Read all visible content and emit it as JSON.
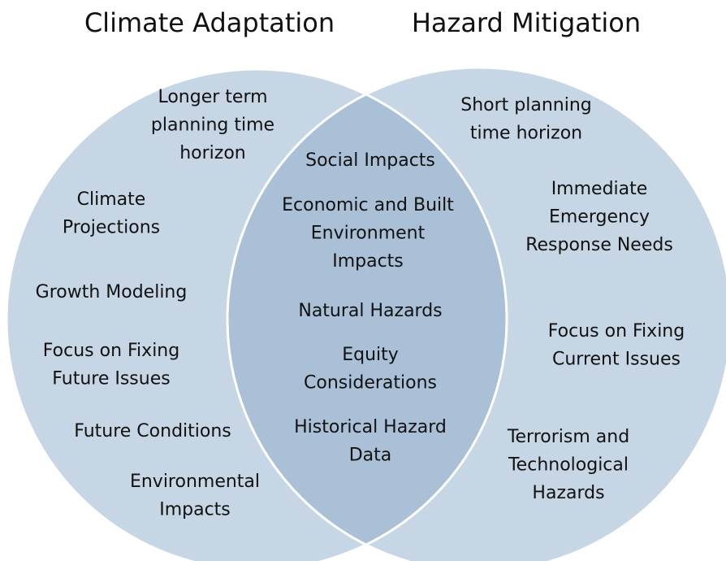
{
  "titles": [
    "Climate Adaptation",
    "Hazard Mitigation"
  ],
  "left_items": [
    {
      "lines": [
        "Longer term",
        "planning time",
        "horizon"
      ]
    },
    {
      "lines": [
        "Climate",
        "Projections"
      ]
    },
    {
      "lines": [
        "Growth Modeling"
      ]
    },
    {
      "lines": [
        "Focus on Fixing",
        "Future Issues"
      ]
    },
    {
      "lines": [
        "Future Conditions"
      ]
    },
    {
      "lines": [
        "Environmental",
        "Impacts"
      ]
    }
  ],
  "shared_items": [
    {
      "lines": [
        "Social Impacts"
      ]
    },
    {
      "lines": [
        "Economic and Built",
        "Environment",
        "Impacts"
      ]
    },
    {
      "lines": [
        "Natural Hazards"
      ]
    },
    {
      "lines": [
        "Equity",
        "Considerations"
      ]
    },
    {
      "lines": [
        "Historical Hazard",
        "Data"
      ]
    }
  ],
  "right_items": [
    {
      "lines": [
        "Short planning",
        "time horizon"
      ]
    },
    {
      "lines": [
        "Immediate",
        "Emergency",
        "Response Needs"
      ]
    },
    {
      "lines": [
        "Focus on Fixing",
        "Current Issues"
      ]
    },
    {
      "lines": [
        "Terrorism and",
        "Technological",
        "Hazards"
      ]
    }
  ]
}
